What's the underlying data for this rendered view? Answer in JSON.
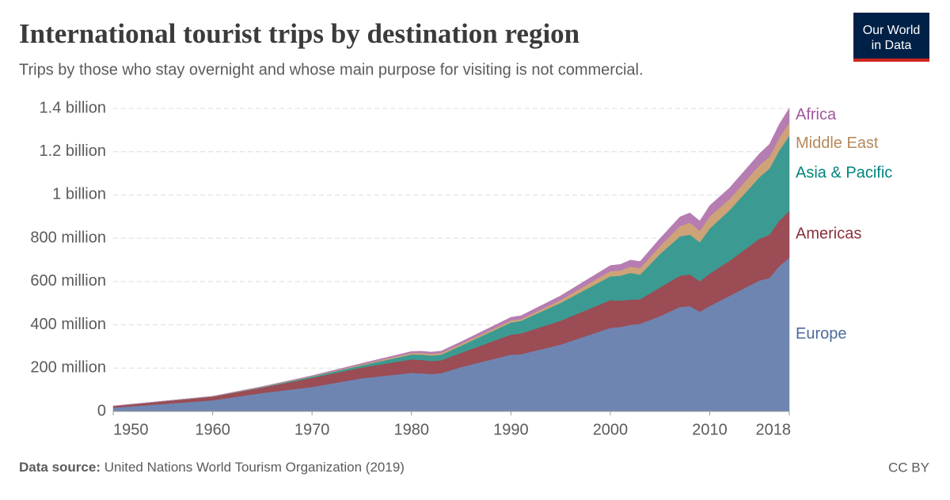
{
  "chart_data": {
    "type": "stacked-area",
    "title": "International tourist trips by destination region",
    "subtitle": "Trips by those who stay overnight and whose main purpose for visiting is not commercial.",
    "source_label": "Data source:",
    "source": "United Nations World Tourism Organization (2019)",
    "license": "CC BY",
    "logo": [
      "Our World",
      "in Data"
    ],
    "x": [
      1950,
      1960,
      1965,
      1970,
      1975,
      1980,
      1981,
      1982,
      1983,
      1985,
      1990,
      1991,
      1995,
      2000,
      2001,
      2002,
      2003,
      2005,
      2007,
      2008,
      2009,
      2010,
      2012,
      2015,
      2016,
      2017,
      2018
    ],
    "xlim": [
      1950,
      2018
    ],
    "xticks": [
      1950,
      1960,
      1970,
      1980,
      1990,
      2000,
      2010,
      2018
    ],
    "ylim": [
      0,
      1400000000
    ],
    "yticks": [
      0,
      {
        "value": 200000000,
        "label": "200 million"
      },
      {
        "value": 400000000,
        "label": "400 million"
      },
      {
        "value": 600000000,
        "label": "600 million"
      },
      {
        "value": 800000000,
        "label": "800 million"
      },
      {
        "value": 1000000000,
        "label": "1 billion"
      },
      {
        "value": 1200000000,
        "label": "1.2 billion"
      },
      {
        "value": 1400000000,
        "label": "1.4 billion"
      }
    ],
    "grid": true,
    "series": [
      {
        "name": "Europe",
        "color": "#6f85b1",
        "label_color": "#4c6a9c",
        "values": [
          17000000,
          51000000,
          85000000,
          113000000,
          153000000,
          178000000,
          176000000,
          173000000,
          177000000,
          205000000,
          262000000,
          264000000,
          309000000,
          386000000,
          390000000,
          400000000,
          405000000,
          440000000,
          483000000,
          486000000,
          461000000,
          487000000,
          534000000,
          605000000,
          616000000,
          672000000,
          710000000
        ]
      },
      {
        "name": "Americas",
        "color": "#9b4c54",
        "label_color": "#883039",
        "values": [
          7500000,
          17000000,
          25000000,
          42000000,
          50000000,
          62000000,
          62000000,
          60000000,
          59000000,
          66000000,
          93000000,
          96000000,
          110000000,
          128000000,
          122000000,
          116000000,
          113000000,
          133000000,
          144000000,
          147000000,
          140000000,
          150000000,
          162000000,
          193000000,
          200000000,
          210000000,
          216000000
        ]
      },
      {
        "name": "Asia & Pacific",
        "color": "#3b9b92",
        "label_color": "#00847e",
        "values": [
          200000,
          900000,
          2000000,
          6000000,
          10000000,
          23000000,
          24000000,
          25000000,
          26000000,
          33000000,
          56000000,
          58000000,
          82000000,
          110000000,
          115000000,
          124000000,
          114000000,
          154000000,
          182000000,
          184000000,
          180000000,
          208000000,
          234000000,
          284000000,
          306000000,
          324000000,
          348000000
        ]
      },
      {
        "name": "Middle East",
        "color": "#cda377",
        "label_color": "#b5895a",
        "values": [
          200000,
          600000,
          1500000,
          2000000,
          4000000,
          7000000,
          8000000,
          8000000,
          8000000,
          8000000,
          9000000,
          8000000,
          14000000,
          24000000,
          24000000,
          29000000,
          30000000,
          37000000,
          47000000,
          55000000,
          53000000,
          56000000,
          51000000,
          56000000,
          54000000,
          58000000,
          60000000
        ]
      },
      {
        "name": "Africa",
        "color": "#b57db1",
        "label_color": "#a2559c",
        "values": [
          500000,
          800000,
          1500000,
          2400000,
          5000000,
          7000000,
          8000000,
          8000000,
          9000000,
          10000000,
          15000000,
          16000000,
          19000000,
          26000000,
          28000000,
          30000000,
          31000000,
          35000000,
          43000000,
          45000000,
          46000000,
          50000000,
          52000000,
          53000000,
          58000000,
          63000000,
          67000000
        ]
      }
    ]
  }
}
